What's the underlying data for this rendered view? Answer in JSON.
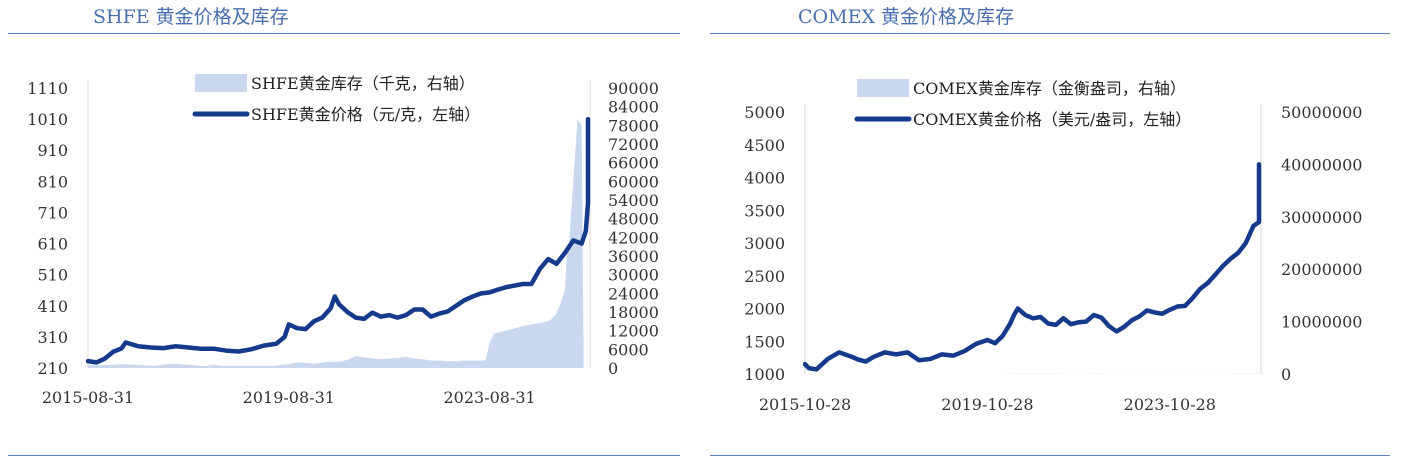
{
  "left": {
    "title": "SHFE 黄金价格及库存",
    "chart_data": {
      "type": "line",
      "legend": [
        "SHFE黄金库存（千克，右轴）",
        "SHFE黄金价格（元/克，左轴）"
      ],
      "x_ticks": [
        "2015-08-31",
        "2019-08-31",
        "2023-08-31"
      ],
      "x_tick_index": [
        0,
        48,
        96
      ],
      "ylim_left": [
        210,
        1110
      ],
      "yticks_left": [
        210,
        310,
        410,
        510,
        610,
        710,
        810,
        910,
        1010,
        1110
      ],
      "ylim_right": [
        0,
        90000
      ],
      "yticks_right": [
        0,
        6000,
        12000,
        18000,
        24000,
        30000,
        36000,
        42000,
        48000,
        54000,
        60000,
        66000,
        72000,
        78000,
        84000,
        90000
      ],
      "months_total": 120,
      "series": [
        {
          "name": "SHFE黄金库存（千克，右轴）",
          "type": "area",
          "axis": "right",
          "color": "#c9d8ef",
          "points": [
            [
              0,
              1000
            ],
            [
              4,
              900
            ],
            [
              8,
              1200
            ],
            [
              12,
              1000
            ],
            [
              16,
              700
            ],
            [
              20,
              1400
            ],
            [
              24,
              1000
            ],
            [
              26,
              800
            ],
            [
              28,
              600
            ],
            [
              30,
              1000
            ],
            [
              32,
              700
            ],
            [
              36,
              700
            ],
            [
              40,
              700
            ],
            [
              44,
              700
            ],
            [
              48,
              1200
            ],
            [
              50,
              1800
            ],
            [
              54,
              1400
            ],
            [
              58,
              2000
            ],
            [
              60,
              2000
            ],
            [
              62,
              2600
            ],
            [
              64,
              3800
            ],
            [
              66,
              3400
            ],
            [
              70,
              2800
            ],
            [
              74,
              3200
            ],
            [
              76,
              3600
            ],
            [
              78,
              3000
            ],
            [
              80,
              2800
            ],
            [
              82,
              2400
            ],
            [
              84,
              2400
            ],
            [
              86,
              2200
            ],
            [
              88,
              2200
            ],
            [
              90,
              2400
            ],
            [
              92,
              2400
            ],
            [
              94,
              2400
            ],
            [
              95,
              2400
            ],
            [
              96,
              8000
            ],
            [
              97,
              11000
            ],
            [
              100,
              12000
            ],
            [
              104,
              13500
            ],
            [
              108,
              14500
            ],
            [
              110,
              15000
            ],
            [
              111,
              16000
            ],
            [
              112,
              17500
            ],
            [
              113,
              21000
            ],
            [
              114,
              25000
            ],
            [
              114.5,
              38000
            ],
            [
              115,
              40000
            ],
            [
              116,
              60000
            ],
            [
              117,
              80000
            ],
            [
              118,
              78000
            ],
            [
              118.5,
              0
            ]
          ]
        },
        {
          "name": "SHFE黄金价格（元/克，左轴）",
          "type": "line",
          "axis": "left",
          "color": "#153a8c",
          "points": [
            [
              0,
              232
            ],
            [
              2,
              228
            ],
            [
              4,
              240
            ],
            [
              6,
              262
            ],
            [
              8,
              273
            ],
            [
              9,
              292
            ],
            [
              12,
              280
            ],
            [
              15,
              276
            ],
            [
              18,
              274
            ],
            [
              21,
              280
            ],
            [
              24,
              276
            ],
            [
              27,
              272
            ],
            [
              30,
              272
            ],
            [
              33,
              266
            ],
            [
              36,
              263
            ],
            [
              39,
              270
            ],
            [
              42,
              282
            ],
            [
              45,
              288
            ],
            [
              47,
              310
            ],
            [
              48,
              350
            ],
            [
              50,
              338
            ],
            [
              52,
              335
            ],
            [
              54,
              360
            ],
            [
              56,
              372
            ],
            [
              58,
              402
            ],
            [
              59,
              440
            ],
            [
              60,
              415
            ],
            [
              62,
              390
            ],
            [
              64,
              372
            ],
            [
              66,
              368
            ],
            [
              68,
              388
            ],
            [
              70,
              375
            ],
            [
              72,
              380
            ],
            [
              74,
              372
            ],
            [
              76,
              380
            ],
            [
              78,
              398
            ],
            [
              80,
              398
            ],
            [
              82,
              375
            ],
            [
              84,
              385
            ],
            [
              86,
              392
            ],
            [
              88,
              410
            ],
            [
              90,
              428
            ],
            [
              92,
              440
            ],
            [
              94,
              450
            ],
            [
              96,
              453
            ],
            [
              98,
              462
            ],
            [
              100,
              470
            ],
            [
              102,
              475
            ],
            [
              104,
              480
            ],
            [
              106,
              480
            ],
            [
              108,
              528
            ],
            [
              110,
              560
            ],
            [
              112,
              545
            ],
            [
              114,
              580
            ],
            [
              116,
              620
            ],
            [
              118,
              610
            ],
            [
              119,
              650
            ],
            [
              120,
              740
            ],
            [
              122,
              815
            ],
            [
              124,
              810
            ],
            [
              125,
              785
            ],
            [
              126,
              785
            ],
            [
              128,
              780
            ],
            [
              130,
              1000
            ],
            [
              131,
              1010
            ]
          ]
        }
      ]
    }
  },
  "right": {
    "title": "COMEX 黄金价格及库存",
    "chart_data": {
      "type": "line",
      "legend": [
        "COMEX黄金库存（金衡盎司，右轴）",
        "COMEX黄金价格（美元/盎司，左轴）"
      ],
      "x_ticks": [
        "2015-10-28",
        "2019-10-28",
        "2023-10-28"
      ],
      "x_tick_index": [
        0,
        48,
        96
      ],
      "ylim_left": [
        1000,
        5000
      ],
      "yticks_left": [
        1000,
        1500,
        2000,
        2500,
        3000,
        3500,
        4000,
        4500,
        5000
      ],
      "ylim_right": [
        0,
        50000000
      ],
      "yticks_right": [
        0,
        10000000,
        20000000,
        30000000,
        40000000,
        50000000
      ],
      "months_total": 120,
      "series": [
        {
          "name": "COMEX黄金库存（金衡盎司，右轴）",
          "type": "area",
          "axis": "right",
          "color": "#c9d8ef",
          "points": [
            [
              0,
              6500
            ],
            [
              4,
              6700
            ],
            [
              8,
              7500
            ],
            [
              10,
              9000
            ],
            [
              12,
              11000
            ],
            [
              14,
              10500
            ],
            [
              16,
              8500
            ],
            [
              20,
              8600
            ],
            [
              24,
              8700
            ],
            [
              28,
              9200
            ],
            [
              32,
              9000
            ],
            [
              36,
              9000
            ],
            [
              40,
              9000
            ],
            [
              42,
              8500
            ],
            [
              44,
              8500
            ],
            [
              48,
              9000
            ],
            [
              50,
              9500
            ],
            [
              52,
              12000
            ],
            [
              53,
              25000
            ],
            [
              54,
              33000
            ],
            [
              56,
              37000
            ],
            [
              58,
              39000
            ],
            [
              60,
              36000
            ],
            [
              62,
              39500
            ],
            [
              64,
              40000
            ],
            [
              66,
              37000
            ],
            [
              68,
              35000
            ],
            [
              70,
              34000
            ],
            [
              72,
              34000
            ],
            [
              74,
              33000
            ],
            [
              76,
              38000
            ],
            [
              78,
              36000
            ],
            [
              80,
              28000
            ],
            [
              82,
              24000
            ],
            [
              84,
              23000
            ],
            [
              86,
              22000
            ],
            [
              88,
              23000
            ],
            [
              90,
              22500
            ],
            [
              92,
              22000
            ],
            [
              94,
              20000
            ],
            [
              96,
              20000
            ],
            [
              98,
              18000
            ],
            [
              100,
              18000
            ],
            [
              102,
              18000
            ],
            [
              104,
              17000
            ],
            [
              106,
              16500
            ],
            [
              108,
              17000
            ],
            [
              110,
              20000
            ],
            [
              112,
              27000
            ],
            [
              113,
              37000
            ],
            [
              114,
              40000
            ],
            [
              115,
              44000
            ],
            [
              116,
              42000
            ],
            [
              118,
              38000
            ],
            [
              120,
              40000
            ],
            [
              122,
              0
            ]
          ]
        },
        {
          "name": "COMEX黄金价格（美元/盎司，左轴）",
          "type": "line",
          "axis": "left",
          "color": "#153a8c",
          "points": [
            [
              0,
              1150
            ],
            [
              1,
              1090
            ],
            [
              3,
              1070
            ],
            [
              6,
              1230
            ],
            [
              9,
              1330
            ],
            [
              12,
              1270
            ],
            [
              14,
              1220
            ],
            [
              16,
              1190
            ],
            [
              18,
              1260
            ],
            [
              21,
              1330
            ],
            [
              24,
              1300
            ],
            [
              27,
              1330
            ],
            [
              30,
              1210
            ],
            [
              33,
              1230
            ],
            [
              36,
              1300
            ],
            [
              39,
              1280
            ],
            [
              42,
              1350
            ],
            [
              45,
              1460
            ],
            [
              48,
              1520
            ],
            [
              50,
              1470
            ],
            [
              52,
              1580
            ],
            [
              54,
              1770
            ],
            [
              55,
              1900
            ],
            [
              56,
              2000
            ],
            [
              58,
              1900
            ],
            [
              60,
              1850
            ],
            [
              62,
              1870
            ],
            [
              64,
              1770
            ],
            [
              66,
              1750
            ],
            [
              68,
              1850
            ],
            [
              70,
              1760
            ],
            [
              72,
              1790
            ],
            [
              74,
              1800
            ],
            [
              76,
              1900
            ],
            [
              78,
              1860
            ],
            [
              80,
              1730
            ],
            [
              82,
              1650
            ],
            [
              84,
              1720
            ],
            [
              86,
              1820
            ],
            [
              88,
              1880
            ],
            [
              90,
              1970
            ],
            [
              92,
              1940
            ],
            [
              94,
              1920
            ],
            [
              96,
              1980
            ],
            [
              98,
              2030
            ],
            [
              100,
              2040
            ],
            [
              102,
              2160
            ],
            [
              104,
              2300
            ],
            [
              106,
              2390
            ],
            [
              108,
              2520
            ],
            [
              110,
              2650
            ],
            [
              112,
              2760
            ],
            [
              114,
              2850
            ],
            [
              116,
              3000
            ],
            [
              118,
              3260
            ],
            [
              120,
              3320
            ],
            [
              121,
              3500
            ],
            [
              122,
              3850
            ],
            [
              123,
              4200
            ]
          ]
        }
      ]
    }
  }
}
